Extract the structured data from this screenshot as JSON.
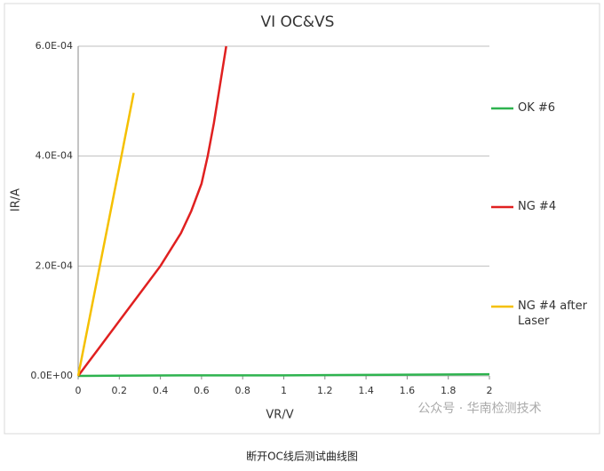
{
  "chart_data": {
    "type": "line",
    "title": "VI OC&VS",
    "x_label": "VR/V",
    "y_label": "IR/A",
    "xlim": [
      0,
      2
    ],
    "xticks": [
      0,
      0.2,
      0.4,
      0.6,
      0.8,
      1,
      1.2,
      1.4,
      1.6,
      1.8,
      2
    ],
    "ylim": [
      0,
      0.0006
    ],
    "yticks": [
      {
        "value": 0,
        "label": "0.0E+00"
      },
      {
        "value": 0.0002,
        "label": "2.0E-04"
      },
      {
        "value": 0.0004,
        "label": "4.0E-04"
      },
      {
        "value": 0.0006,
        "label": "6.0E-04"
      }
    ],
    "grid": true,
    "legend": "right",
    "series": [
      {
        "name": "OK #6",
        "color": "#2eb34f",
        "x": [
          0,
          0.5,
          1,
          1.5,
          2
        ],
        "values": [
          0,
          1e-06,
          1e-06,
          2e-06,
          3e-06
        ]
      },
      {
        "name": "NG #4",
        "color": "#e02020",
        "x": [
          0,
          0.05,
          0.1,
          0.2,
          0.3,
          0.4,
          0.5,
          0.55,
          0.6,
          0.63,
          0.66,
          0.69,
          0.72
        ],
        "values": [
          0,
          2.5e-05,
          5e-05,
          0.0001,
          0.00015,
          0.0002,
          0.00026,
          0.0003,
          0.00035,
          0.0004,
          0.00046,
          0.00053,
          0.0006
        ]
      },
      {
        "name": "NG #4 after Laser",
        "color": "#f5c000",
        "x": [
          0,
          0.1,
          0.2,
          0.27
        ],
        "values": [
          0,
          0.00019,
          0.00038,
          0.000515
        ]
      }
    ]
  },
  "caption": "断开OC线后测试曲线图",
  "watermark": "公众号 · 华南检测技术"
}
